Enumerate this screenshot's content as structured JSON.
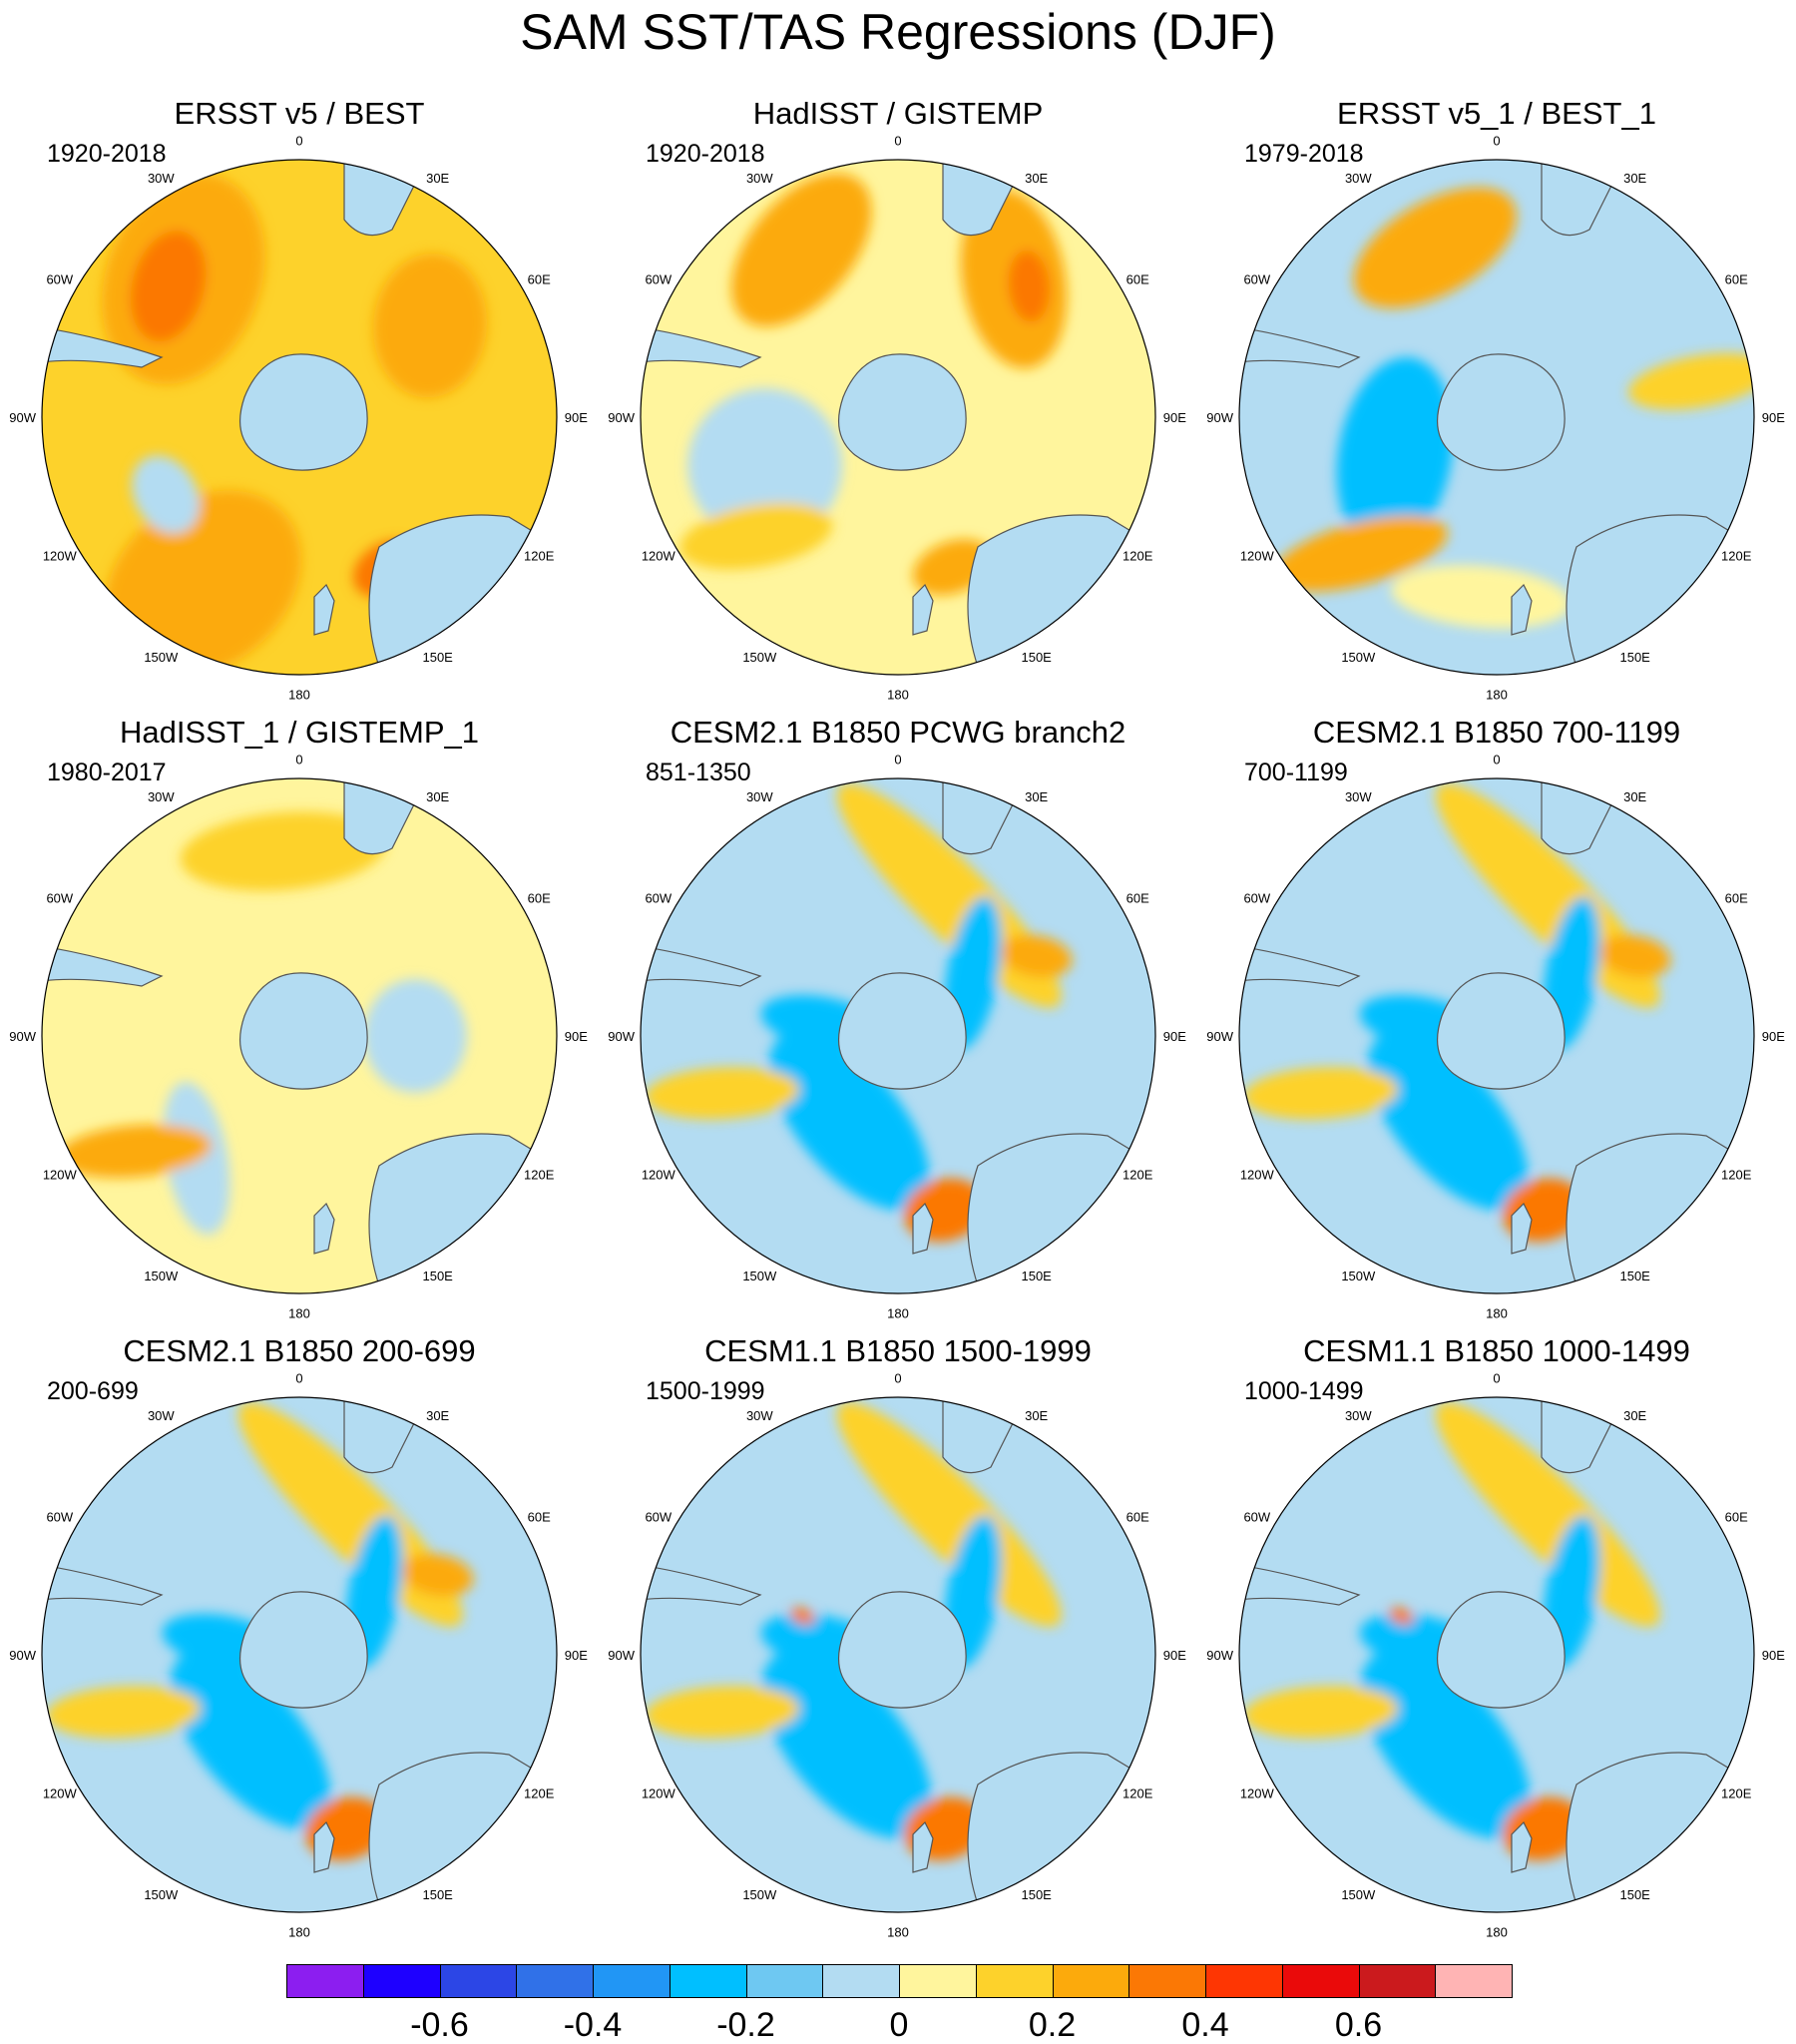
{
  "title": "SAM SST/TAS Regressions (DJF)",
  "panels": [
    {
      "title": "ERSST v5 / BEST",
      "period": "1920-2018",
      "pattern": "obs_long_warm"
    },
    {
      "title": "HadISST / GISTEMP",
      "period": "1920-2018",
      "pattern": "obs_long_mixed"
    },
    {
      "title": "ERSST v5_1 / BEST_1",
      "period": "1979-2018",
      "pattern": "obs_recent"
    },
    {
      "title": "HadISST_1 / GISTEMP_1",
      "period": "1980-2017",
      "pattern": "obs_recent_noisy"
    },
    {
      "title": "CESM2.1 B1850 PCWG branch2",
      "period": "851-1350",
      "pattern": "model"
    },
    {
      "title": "CESM2.1 B1850 700-1199",
      "period": "700-1199",
      "pattern": "model"
    },
    {
      "title": "CESM2.1 B1850 200-699",
      "period": "200-699",
      "pattern": "model"
    },
    {
      "title": "CESM1.1 B1850 1500-1999",
      "period": "1500-1999",
      "pattern": "model_strong"
    },
    {
      "title": "CESM1.1 B1850 1000-1499",
      "period": "1000-1499",
      "pattern": "model_strong"
    }
  ],
  "longitude_labels": [
    "0",
    "30E",
    "60E",
    "90E",
    "120E",
    "150E",
    "180",
    "150W",
    "120W",
    "90W",
    "60W",
    "30W"
  ],
  "colorbar": {
    "colors": [
      "#8c1ef0",
      "#1e00ff",
      "#2c46e6",
      "#3071e8",
      "#2196f5",
      "#00bfff",
      "#6ec8f2",
      "#b3dcf2",
      "#fff59d",
      "#fdd22b",
      "#fcaa0c",
      "#fb7805",
      "#fe3603",
      "#ea0a0a",
      "#cb1a1d",
      "#ffb4b4"
    ],
    "labels": [
      "-0.6",
      "-0.4",
      "-0.2",
      "0",
      "0.2",
      "0.4",
      "0.6"
    ],
    "label_values": [
      -0.6,
      -0.4,
      -0.2,
      0,
      0.2,
      0.4,
      0.6
    ],
    "range": [
      -0.8,
      0.8
    ],
    "step": 0.1
  }
}
